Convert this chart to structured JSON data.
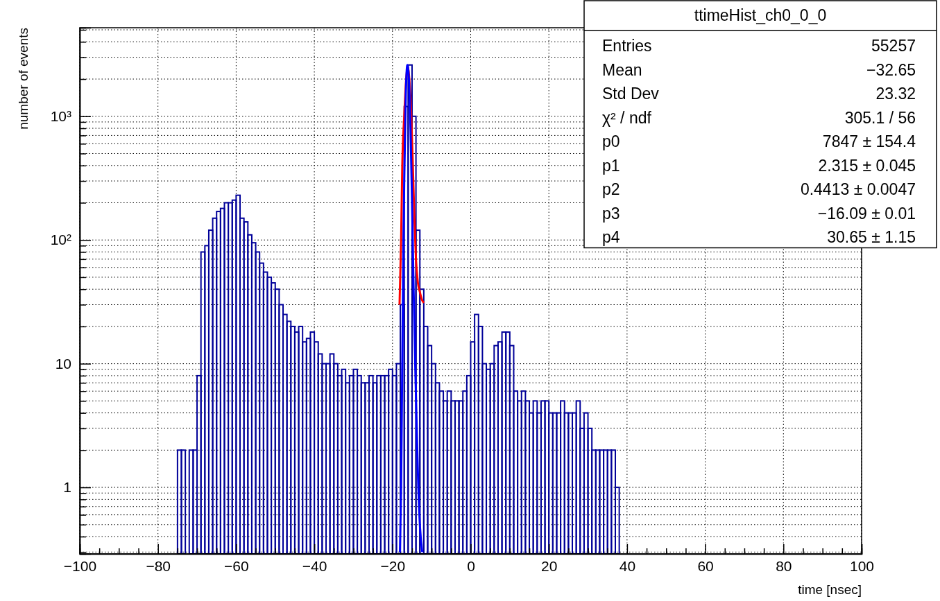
{
  "chart_data": {
    "type": "histogram",
    "xlabel": "time [nsec]",
    "ylabel": "number of events",
    "log": "y",
    "grid": true,
    "xlim": [
      -100,
      100
    ],
    "xticks": [
      -100,
      {
        "value": -95,
        "label": null
      },
      {
        "value": -90,
        "label": null
      },
      {
        "value": -85,
        "label": null
      },
      -80,
      {
        "value": -75,
        "label": null
      },
      {
        "value": -70,
        "label": null
      },
      {
        "value": -65,
        "label": null
      },
      -60,
      {
        "value": -55,
        "label": null
      },
      {
        "value": -50,
        "label": null
      },
      {
        "value": -45,
        "label": null
      },
      -40,
      {
        "value": -35,
        "label": null
      },
      {
        "value": -30,
        "label": null
      },
      {
        "value": -25,
        "label": null
      },
      -20,
      {
        "value": -15,
        "label": null
      },
      {
        "value": -10,
        "label": null
      },
      {
        "value": -5,
        "label": null
      },
      0,
      {
        "value": 5,
        "label": null
      },
      {
        "value": 10,
        "label": null
      },
      {
        "value": 15,
        "label": null
      },
      20,
      {
        "value": 25,
        "label": null
      },
      {
        "value": 30,
        "label": null
      },
      {
        "value": 35,
        "label": null
      },
      40,
      {
        "value": 45,
        "label": null
      },
      {
        "value": 50,
        "label": null
      },
      {
        "value": 55,
        "label": null
      },
      60,
      {
        "value": 65,
        "label": null
      },
      {
        "value": 70,
        "label": null
      },
      {
        "value": 75,
        "label": null
      },
      80,
      {
        "value": 85,
        "label": null
      },
      {
        "value": 90,
        "label": null
      },
      {
        "value": 95,
        "label": null
      },
      100
    ],
    "ylim": [
      0.29,
      5200
    ],
    "yticks": [
      {
        "value": 0.3,
        "label": null
      },
      {
        "value": 0.4,
        "label": null
      },
      {
        "value": 0.5,
        "label": null
      },
      {
        "value": 0.6,
        "label": null
      },
      {
        "value": 0.7,
        "label": null
      },
      {
        "value": 0.8,
        "label": null
      },
      {
        "value": 0.9,
        "label": null
      },
      1,
      {
        "value": 2,
        "label": null
      },
      {
        "value": 3,
        "label": null
      },
      {
        "value": 4,
        "label": null
      },
      {
        "value": 5,
        "label": null
      },
      {
        "value": 6,
        "label": null
      },
      {
        "value": 7,
        "label": null
      },
      {
        "value": 8,
        "label": null
      },
      {
        "value": 9,
        "label": null
      },
      10,
      {
        "value": 20,
        "label": null
      },
      {
        "value": 30,
        "label": null
      },
      {
        "value": 40,
        "label": null
      },
      {
        "value": 50,
        "label": null
      },
      {
        "value": 60,
        "label": null
      },
      {
        "value": 70,
        "label": null
      },
      {
        "value": 80,
        "label": null
      },
      {
        "value": 90,
        "label": null
      },
      {
        "value": 100,
        "label": "10²"
      },
      {
        "value": 200,
        "label": null
      },
      {
        "value": 300,
        "label": null
      },
      {
        "value": 400,
        "label": null
      },
      {
        "value": 500,
        "label": null
      },
      {
        "value": 600,
        "label": null
      },
      {
        "value": 700,
        "label": null
      },
      {
        "value": 800,
        "label": null
      },
      {
        "value": 900,
        "label": null
      },
      {
        "value": 1000,
        "label": "10³"
      },
      {
        "value": 2000,
        "label": null
      },
      {
        "value": 3000,
        "label": null
      },
      {
        "value": 4000,
        "label": null
      },
      {
        "value": 5000,
        "label": null
      }
    ],
    "annotations": [
      "ttimeHist_ch0_0_0",
      "Entries",
      "55257",
      "Mean",
      "−32.65",
      "Std Dev",
      "23.32",
      "χ² / ndf",
      "305.1 / 56",
      "p0",
      "7847 ± 154.4",
      "p1",
      "2.315 ± 0.045",
      "p2",
      "0.4413 ± 0.0047",
      "p3",
      "−16.09 ± 0.01",
      "p4",
      "30.65 ± 1.15"
    ],
    "series": [
      {
        "type": "histogram",
        "color": "#000099",
        "bins": [
          -75,
          -74,
          -73,
          -72,
          -71,
          -70,
          -69,
          -68,
          -67,
          -66,
          -65,
          -64,
          -63,
          -62,
          -61,
          -60,
          -59,
          -58,
          -57,
          -56,
          -55,
          -54,
          -53,
          -52,
          -51,
          -50,
          -49,
          -48,
          -47,
          -46,
          -45,
          -44,
          -43,
          -42,
          -41,
          -40,
          -39,
          -38,
          -37,
          -36,
          -35,
          -34,
          -33,
          -32,
          -31,
          -30,
          -29,
          -28,
          -27,
          -26,
          -25,
          -24,
          -23,
          -22,
          -21,
          -20,
          -19,
          -18,
          -17,
          -16,
          -15,
          -14,
          -13,
          -12,
          -11,
          -10,
          -9,
          -8,
          -7,
          -6,
          -5,
          -4,
          -3,
          -2,
          -1,
          0,
          1,
          2,
          3,
          4,
          5,
          6,
          7,
          8,
          9,
          10,
          11,
          12,
          13,
          14,
          15,
          16,
          17,
          18,
          19,
          20,
          21,
          22,
          23,
          24,
          25,
          26,
          27,
          28,
          29,
          30,
          31,
          32,
          33,
          34,
          35,
          36,
          37,
          38
        ],
        "values": [
          2,
          2,
          null,
          2,
          2,
          8,
          80,
          90,
          120,
          150,
          170,
          180,
          200,
          200,
          210,
          230,
          150,
          140,
          110,
          95,
          80,
          65,
          55,
          50,
          45,
          40,
          30,
          25,
          22,
          20,
          18,
          20,
          15,
          16,
          18,
          15,
          12,
          10,
          10,
          12,
          10,
          8,
          9,
          7,
          8,
          9,
          8,
          7,
          7,
          8,
          7,
          8,
          8,
          8,
          9,
          8,
          10,
          30,
          1200,
          2600,
          1000,
          120,
          40,
          20,
          14,
          10,
          7,
          6,
          5,
          6,
          5,
          5,
          5,
          6,
          8,
          15,
          25,
          20,
          10,
          9,
          10,
          14,
          15,
          18,
          18,
          14,
          6,
          5,
          6,
          5,
          4,
          5,
          4,
          5,
          5,
          4,
          4,
          4,
          5,
          4,
          4,
          4,
          5,
          3,
          4,
          3,
          2,
          2,
          2,
          2,
          2,
          2,
          1
        ]
      },
      {
        "type": "line",
        "color": "#ff0000",
        "x": [
          -18.2,
          -17.8,
          -17.5,
          -17,
          -16.5,
          -16.1,
          -15.7,
          -15.2,
          -14.8,
          -14.4,
          -14,
          -13.5,
          -13,
          -12.5,
          -12
        ],
        "values": [
          30,
          100,
          400,
          1000,
          2000,
          2500,
          2000,
          1000,
          400,
          150,
          70,
          45,
          38,
          33,
          31
        ]
      },
      {
        "type": "line",
        "color": "#0000ff",
        "x": [
          -18.1,
          -17.8,
          -17.5,
          -17.2,
          -17,
          -16.6,
          -16.2,
          -15.8,
          -15.4,
          -15,
          -14.6,
          -14.2,
          -13.8,
          -13.4,
          -13,
          -12.4
        ],
        "values": [
          0.3,
          1,
          10,
          100,
          300,
          1500,
          2600,
          2000,
          800,
          200,
          40,
          10,
          3,
          1,
          0.5,
          0.3
        ]
      }
    ]
  }
}
